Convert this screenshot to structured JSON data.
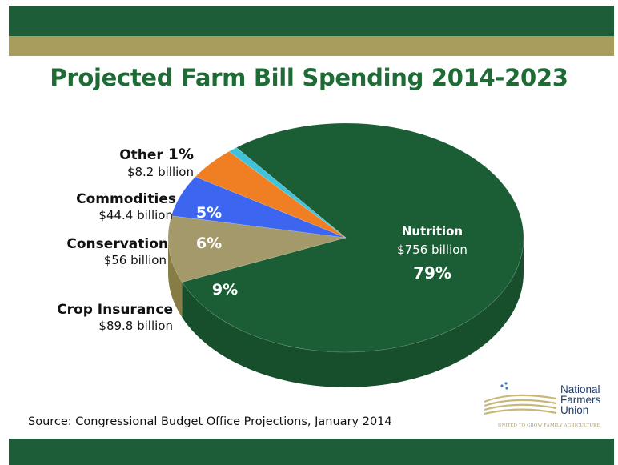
{
  "title": "Projected Farm Bill Spending 2014-2023",
  "source": "Source: Congressional Budget Office Projections, January 2014",
  "logo": {
    "lines": [
      "National",
      "Farmers",
      "Union"
    ],
    "tagline": "UNITED TO GROW FAMILY AGRICULTURE"
  },
  "colors": {
    "band_green": "#1d5d38",
    "band_gold": "#a89d5c",
    "title_green": "#1f6b36"
  },
  "chart_data": {
    "type": "pie",
    "title": "Projected Farm Bill Spending 2014-2023",
    "slices": [
      {
        "name": "Nutrition",
        "amount": "$756 billion",
        "value": 756,
        "percent": "79%",
        "color": "#1b5e35",
        "side": "#174f2d"
      },
      {
        "name": "Crop Insurance",
        "amount": "$89.8 billion",
        "value": 89.8,
        "percent": "9%",
        "color": "#a4996a",
        "side": "#877d44"
      },
      {
        "name": "Conservation",
        "amount": "$56 billion",
        "value": 56,
        "percent": "6%",
        "color": "#3d66f0",
        "side": "#2f4fc0"
      },
      {
        "name": "Commodities",
        "amount": "$44.4 billion",
        "value": 44.4,
        "percent": "5%",
        "color": "#ef7f22",
        "side": "#c9661a"
      },
      {
        "name": "Other",
        "amount": "$8.2 billion",
        "value": 8.2,
        "percent": "1%",
        "color": "#3fc3dc",
        "side": "#33a3b8"
      }
    ]
  }
}
